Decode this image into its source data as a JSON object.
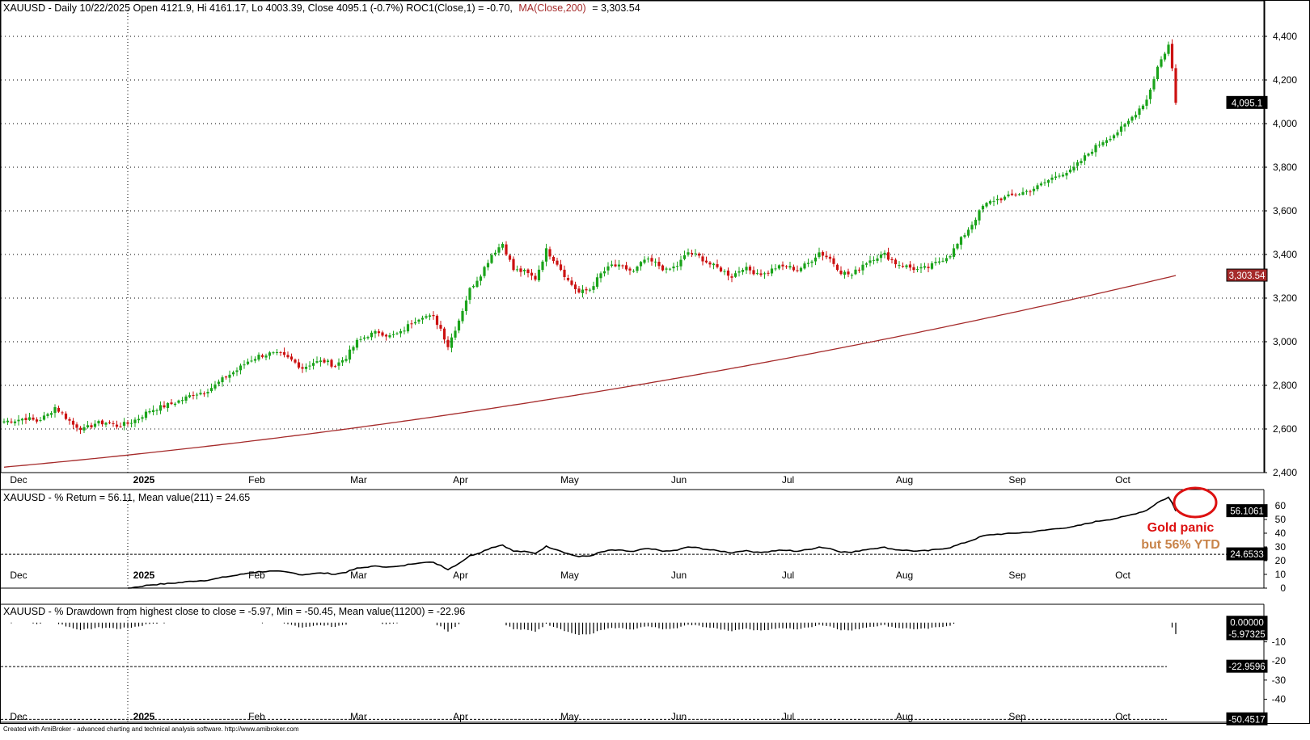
{
  "colors": {
    "up": "#1aa31a",
    "down": "#cc1111",
    "ma": "#a52a2a",
    "line": "#000000",
    "annotation_red": "#dd1111",
    "annotation_tan": "#c8844a"
  },
  "header": {
    "ticker": "XAUUSD - Daily 10/22/2025 Open 4121.9, Hi 4161.17, Lo 4003.39, Close 4095.1 (-0.7%) ROC1(Close,1) = -0.70,",
    "ma_label": "MA(Close,200)",
    "ma_value": "= 3,303.54"
  },
  "months": [
    "Dec",
    "2025",
    "Feb",
    "Mar",
    "Apr",
    "May",
    "Jun",
    "Jul",
    "Aug",
    "Sep",
    "Oct"
  ],
  "chart_data": [
    {
      "type": "candlestick",
      "title": "XAUUSD - Daily 10/22/2025 Open 4121.9, Hi 4161.17, Lo 4003.39, Close 4095.1 (-0.7%) ROC1(Close,1) = -0.70, MA(Close,200) = 3,303.54",
      "yticks": [
        "2,400",
        "2,600",
        "2,800",
        "3,000",
        "3,200",
        "3,400",
        "3,600",
        "3,800",
        "4,000",
        "4,200",
        "4,400"
      ],
      "ylim": [
        2400,
        4500
      ],
      "price_waypoints": [
        [
          0,
          2635
        ],
        [
          3,
          2640
        ],
        [
          6,
          2650
        ],
        [
          9,
          2636
        ],
        [
          12,
          2665
        ],
        [
          14,
          2700
        ],
        [
          16,
          2670
        ],
        [
          19,
          2620
        ],
        [
          22,
          2598
        ],
        [
          25,
          2625
        ],
        [
          28,
          2630
        ],
        [
          31,
          2615
        ],
        [
          34,
          2625
        ],
        [
          37,
          2650
        ],
        [
          40,
          2685
        ],
        [
          43,
          2700
        ],
        [
          46,
          2715
        ],
        [
          49,
          2735
        ],
        [
          52,
          2760
        ],
        [
          55,
          2770
        ],
        [
          58,
          2800
        ],
        [
          61,
          2840
        ],
        [
          64,
          2870
        ],
        [
          67,
          2910
        ],
        [
          70,
          2935
        ],
        [
          73,
          2945
        ],
        [
          76,
          2940
        ],
        [
          79,
          2915
        ],
        [
          82,
          2880
        ],
        [
          85,
          2905
        ],
        [
          88,
          2910
        ],
        [
          91,
          2890
        ],
        [
          94,
          2930
        ],
        [
          97,
          3000
        ],
        [
          100,
          3030
        ],
        [
          103,
          3045
        ],
        [
          106,
          3025
        ],
        [
          109,
          3040
        ],
        [
          112,
          3090
        ],
        [
          115,
          3120
        ],
        [
          118,
          3110
        ],
        [
          120,
          3060
        ],
        [
          122,
          2980
        ],
        [
          125,
          3100
        ],
        [
          128,
          3240
        ],
        [
          131,
          3310
        ],
        [
          134,
          3400
        ],
        [
          137,
          3450
        ],
        [
          140,
          3330
        ],
        [
          143,
          3320
        ],
        [
          146,
          3290
        ],
        [
          149,
          3420
        ],
        [
          152,
          3360
        ],
        [
          155,
          3280
        ],
        [
          158,
          3225
        ],
        [
          161,
          3240
        ],
        [
          164,
          3310
        ],
        [
          167,
          3350
        ],
        [
          170,
          3340
        ],
        [
          173,
          3320
        ],
        [
          176,
          3375
        ],
        [
          179,
          3360
        ],
        [
          182,
          3325
        ],
        [
          185,
          3350
        ],
        [
          188,
          3410
        ],
        [
          191,
          3390
        ],
        [
          194,
          3355
        ],
        [
          197,
          3330
        ],
        [
          200,
          3300
        ],
        [
          203,
          3340
        ],
        [
          206,
          3320
        ],
        [
          209,
          3310
        ],
        [
          212,
          3340
        ],
        [
          215,
          3345
        ],
        [
          218,
          3330
        ],
        [
          221,
          3360
        ],
        [
          224,
          3410
        ],
        [
          227,
          3380
        ],
        [
          230,
          3320
        ],
        [
          233,
          3305
        ],
        [
          236,
          3355
        ],
        [
          239,
          3385
        ],
        [
          242,
          3400
        ],
        [
          245,
          3360
        ],
        [
          248,
          3345
        ],
        [
          251,
          3330
        ],
        [
          254,
          3340
        ],
        [
          257,
          3370
        ],
        [
          260,
          3400
        ],
        [
          263,
          3470
        ],
        [
          266,
          3540
        ],
        [
          269,
          3620
        ],
        [
          272,
          3650
        ],
        [
          275,
          3660
        ],
        [
          278,
          3675
        ],
        [
          281,
          3690
        ],
        [
          284,
          3710
        ],
        [
          287,
          3740
        ],
        [
          290,
          3770
        ],
        [
          293,
          3780
        ],
        [
          296,
          3830
        ],
        [
          299,
          3880
        ],
        [
          302,
          3920
        ],
        [
          305,
          3950
        ],
        [
          308,
          3990
        ],
        [
          311,
          4050
        ],
        [
          314,
          4110
        ],
        [
          317,
          4260
        ],
        [
          320,
          4360
        ],
        [
          321,
          4250
        ],
        [
          322,
          4095
        ]
      ],
      "last_close": 4095.1,
      "last_price_label": "4,095.1",
      "ma_name": "MA(Close,200)",
      "ma_range": [
        2425,
        3303.54
      ],
      "ma_value_label": "3,303.54"
    },
    {
      "type": "line",
      "title": "XAUUSD - % Return = 56.11, Mean value(211) = 24.65",
      "yticks": [
        "0",
        "10",
        "20",
        "30",
        "40",
        "50",
        "60"
      ],
      "ylim": [
        0,
        60
      ],
      "series": [
        {
          "name": "% Return",
          "last": 56.1061,
          "mean": 24.6533
        }
      ],
      "last_label": "56.1061",
      "mean_label": "24.6533"
    },
    {
      "type": "histogram",
      "title": "XAUUSD - % Drawdown from highest close to close = -5.97, Min = -50.45, Mean value(11200) = -22.96",
      "yticks": [
        "-10",
        "-20",
        "-30",
        "-40"
      ],
      "ylim": [
        -52,
        2
      ],
      "current": -5.97325,
      "min": -50.4517,
      "mean": -22.9596,
      "labels": [
        "0.00000",
        "-5.97325",
        "-22.9596",
        "-50.4517"
      ]
    }
  ],
  "annotation": {
    "line1": "Gold panic",
    "line2": "but 56% YTD"
  },
  "footer": "Created with AmiBroker - advanced charting and technical analysis software. http://www.amibroker.com"
}
